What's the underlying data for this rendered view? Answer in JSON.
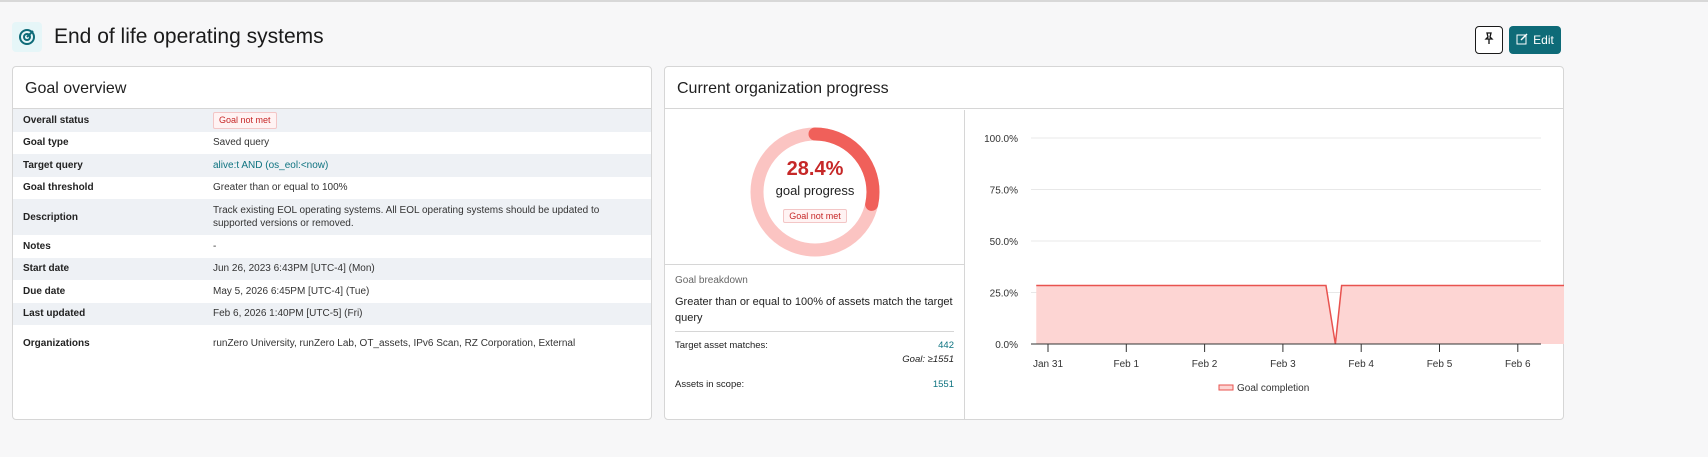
{
  "header": {
    "title": "End of life operating systems",
    "edit_label": "Edit"
  },
  "overview": {
    "title": "Goal overview",
    "rows": [
      {
        "key": "Overall status",
        "value": "Goal not met",
        "type": "badge"
      },
      {
        "key": "Goal type",
        "value": "Saved query"
      },
      {
        "key": "Target query",
        "value": "alive:t AND (os_eol:<now)",
        "type": "link"
      },
      {
        "key": "Goal threshold",
        "value": "Greater than or equal to 100%"
      },
      {
        "key": "Description",
        "value": "Track existing EOL operating systems. All EOL operating systems should be updated to supported versions or removed."
      },
      {
        "key": "Notes",
        "value": "-"
      },
      {
        "key": "Start date",
        "value": "Jun 26, 2023 6:43PM [UTC-4] (Mon)"
      },
      {
        "key": "Due date",
        "value": "May 5, 2026 6:45PM [UTC-4] (Tue)"
      },
      {
        "key": "Last updated",
        "value": "Feb 6, 2026 1:40PM [UTC-5] (Fri)"
      },
      {
        "key": "Organizations",
        "value": "runZero University, runZero Lab, OT_assets, IPv6 Scan, RZ Corporation, External"
      }
    ]
  },
  "progress": {
    "title": "Current organization progress",
    "percent_label": "28.4%",
    "percent": 28.4,
    "sub": "goal progress",
    "badge": "Goal not met",
    "breakdown_label": "Goal breakdown",
    "breakdown": "Greater than or equal to 100% of assets match the target query",
    "matches_label": "Target asset matches:",
    "matches": "442",
    "goal": "Goal: ≥1551",
    "scope_label": "Assets in scope:",
    "scope": "1551"
  },
  "colors": {
    "accent": "#0e6b78",
    "danger": "#e8534f",
    "fill": "#fdd5d3"
  },
  "chart_data": {
    "type": "area",
    "series": [
      {
        "name": "Goal completion",
        "x": [
          -0.15,
          3.55,
          3.67,
          3.75,
          6.7
        ],
        "y": [
          28.4,
          28.4,
          0,
          28.4,
          28.4
        ]
      }
    ],
    "x_ticks": [
      "Jan 31",
      "Feb 1",
      "Feb 2",
      "Feb 3",
      "Feb 4",
      "Feb 5",
      "Feb 6"
    ],
    "y_ticks": [
      "0.0%",
      "25.0%",
      "50.0%",
      "75.0%",
      "100.0%"
    ],
    "ylim": [
      0,
      100
    ],
    "legend": "bottom"
  }
}
